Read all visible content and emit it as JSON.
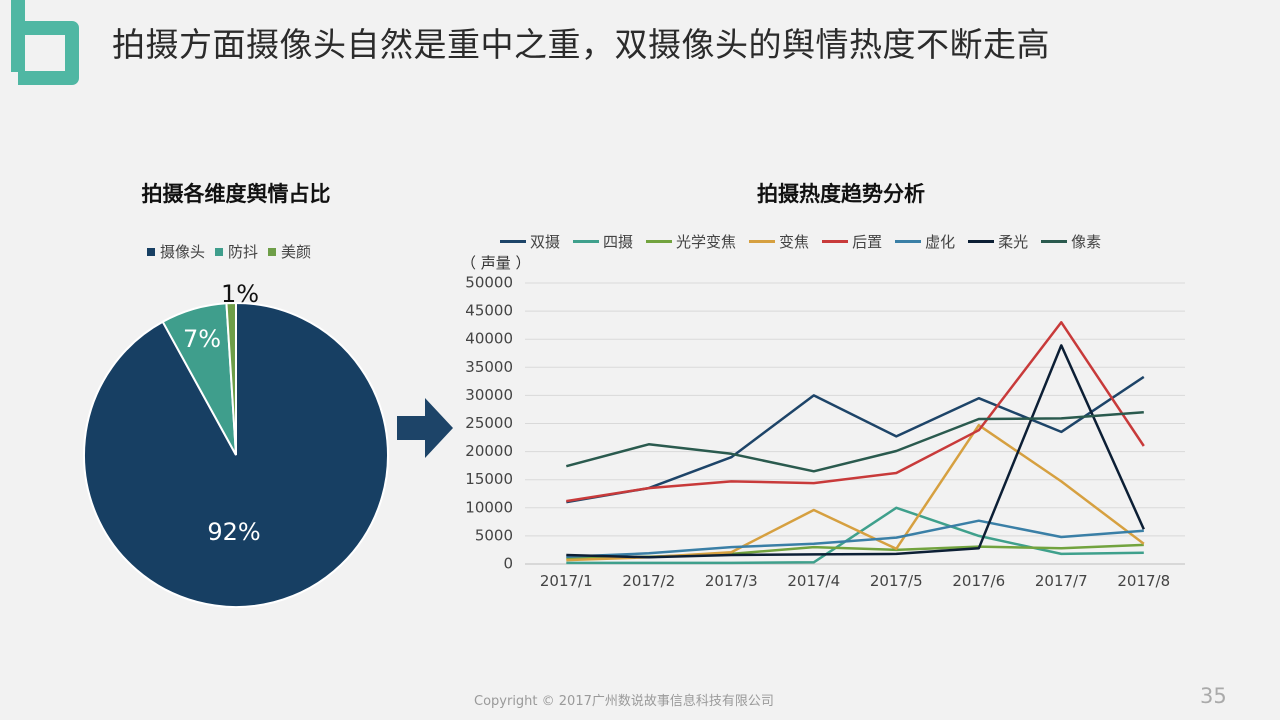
{
  "header": {
    "title": "拍摄方面摄像头自然是重中之重，双摄像头的舆情热度不断走高"
  },
  "logo_color": "#4fb7a3",
  "pie": {
    "subtitle": "拍摄各维度舆情占比",
    "chart_data": {
      "type": "pie",
      "labels": [
        "摄像头",
        "防抖",
        "美颜"
      ],
      "values": [
        92,
        7,
        1
      ],
      "value_labels": [
        "92%",
        "7%",
        "1%"
      ],
      "colors": [
        "#173f63",
        "#3f9e8c",
        "#6e9e48"
      ]
    }
  },
  "line": {
    "subtitle": "拍摄热度趋势分析",
    "unit_label": "（ 声量 ）",
    "chart_data": {
      "type": "line",
      "categories": [
        "2017/1",
        "2017/2",
        "2017/3",
        "2017/4",
        "2017/5",
        "2017/6",
        "2017/7",
        "2017/8"
      ],
      "ylim": [
        0,
        50000
      ],
      "yticks": [
        "0",
        "5000",
        "10000",
        "15000",
        "20000",
        "25000",
        "30000",
        "35000",
        "40000",
        "45000",
        "50000"
      ],
      "series": [
        {
          "name": "双摄",
          "color": "#1d4468",
          "values": [
            11000,
            13500,
            19000,
            30000,
            22700,
            29500,
            23500,
            33300
          ]
        },
        {
          "name": "四摄",
          "color": "#3fa08c",
          "values": [
            200,
            200,
            200,
            300,
            10000,
            5000,
            1800,
            2000
          ]
        },
        {
          "name": "光学变焦",
          "color": "#72a33e",
          "values": [
            1000,
            1300,
            1800,
            3000,
            2500,
            3100,
            2800,
            3400
          ]
        },
        {
          "name": "变焦",
          "color": "#d6a040",
          "values": [
            700,
            1200,
            2100,
            9600,
            2700,
            24700,
            14700,
            3600
          ]
        },
        {
          "name": "后置",
          "color": "#c83a3a",
          "values": [
            11200,
            13500,
            14700,
            14400,
            16200,
            23800,
            43000,
            21000
          ]
        },
        {
          "name": "虚化",
          "color": "#3a7fa6",
          "values": [
            1300,
            1900,
            3000,
            3600,
            4700,
            7700,
            4800,
            5900
          ]
        },
        {
          "name": "柔光",
          "color": "#0c1f35",
          "values": [
            1600,
            1200,
            1600,
            1700,
            1800,
            2800,
            38900,
            6200
          ]
        },
        {
          "name": "像素",
          "color": "#2a5a4e",
          "values": [
            17400,
            21300,
            19600,
            16500,
            20100,
            25800,
            25900,
            27000
          ]
        }
      ]
    }
  },
  "footer": {
    "copyright": "Copyright © 2017广州数说故事信息科技有限公司",
    "page_number": "35"
  }
}
